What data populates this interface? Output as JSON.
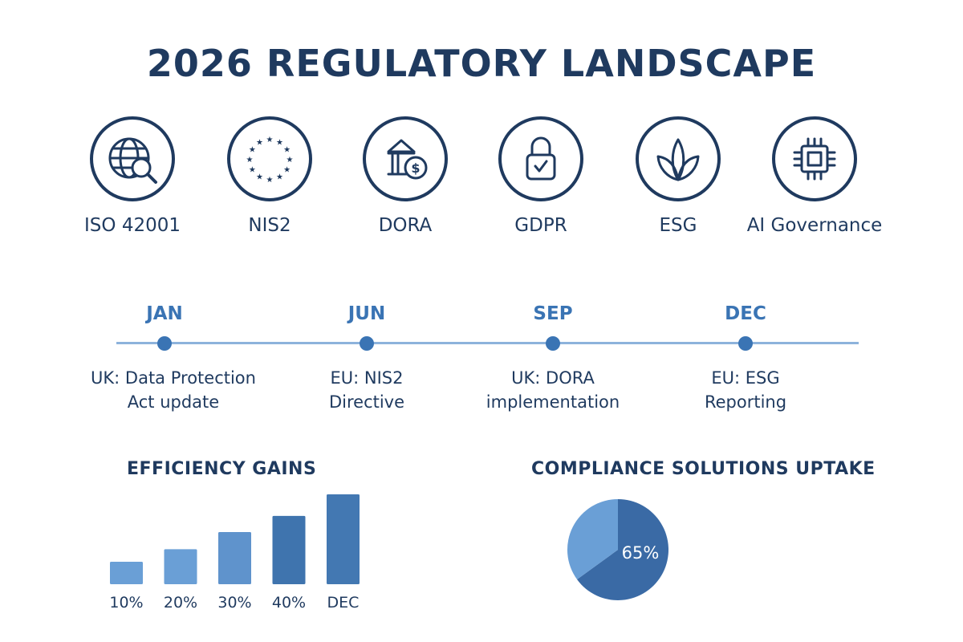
{
  "title": "2026 REGULATORY LANDSCAPE",
  "frameworks": [
    {
      "label": "ISO 42001",
      "icon": "globe-magnifier-icon"
    },
    {
      "label": "NIS2",
      "icon": "eu-stars-icon"
    },
    {
      "label": "DORA",
      "icon": "bank-dollar-icon"
    },
    {
      "label": "GDPR",
      "icon": "padlock-check-icon"
    },
    {
      "label": "ESG",
      "icon": "leaf-sprout-icon"
    },
    {
      "label": "AI Governance",
      "icon": "microchip-icon"
    }
  ],
  "timeline": [
    {
      "month": "JAN",
      "event1": "UK: Data Protection",
      "event2": "Act update"
    },
    {
      "month": "JUN",
      "event1": "EU: NIS2",
      "event2": "Directive"
    },
    {
      "month": "SEP",
      "event1": "UK: DORA",
      "event2": "implementation"
    },
    {
      "month": "DEC",
      "event1": "EU: ESG",
      "event2": "Reporting"
    }
  ],
  "colors": {
    "navy": "#1f3a5f",
    "blue": "#3a74b4",
    "light_blue": "#6a9fd6"
  },
  "chart_data": [
    {
      "type": "bar",
      "title": "EFFICIENCY GAINS",
      "categories": [
        "10%",
        "20%",
        "30%",
        "40%",
        "DEC"
      ],
      "values_relative": [
        0.25,
        0.39,
        0.58,
        0.76,
        1.0
      ],
      "grid": false
    },
    {
      "type": "pie",
      "title": "COMPLIANCE SOLUTIONS UPTAKE",
      "slices": [
        {
          "value": 65,
          "label": "65%",
          "color": "#3a6aa5"
        },
        {
          "value": 35,
          "label": "",
          "color": "#6a9fd6"
        }
      ]
    }
  ]
}
